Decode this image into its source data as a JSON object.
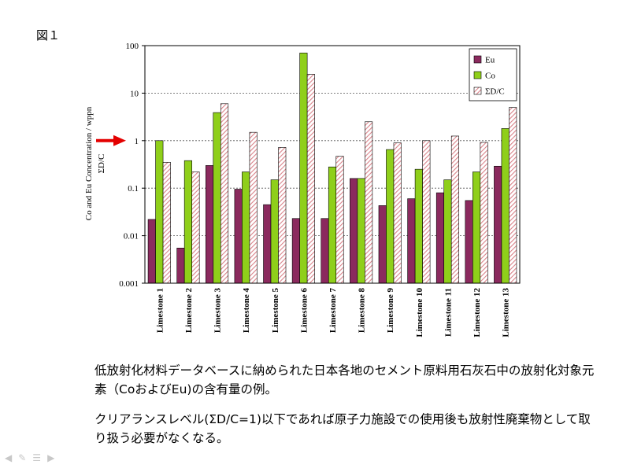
{
  "figure_label": "図１",
  "chart_data": {
    "type": "bar",
    "categories": [
      "Limestone 1",
      "Limestone 2",
      "Limestone 3",
      "Limestone 4",
      "Limestone 5",
      "Limestone 6",
      "Limestone 7",
      "Limestone 8",
      "Limestone 9",
      "Limestone 10",
      "Limestone 11",
      "Limestone 12",
      "Limestone 13"
    ],
    "series": [
      {
        "name": "Eu",
        "color": "#8b2a5e",
        "pattern": "solid",
        "values": [
          0.022,
          0.0055,
          0.3,
          0.095,
          0.045,
          0.023,
          0.023,
          0.16,
          0.043,
          0.06,
          0.08,
          0.055,
          0.29
        ]
      },
      {
        "name": "Co",
        "color": "#8fcf1a",
        "pattern": "solid",
        "values": [
          1.0,
          0.38,
          3.9,
          0.22,
          0.15,
          70,
          0.28,
          0.16,
          0.65,
          0.25,
          0.15,
          0.22,
          1.8
        ]
      },
      {
        "name": "ΣD/C",
        "color": "#d9838a",
        "pattern": "hatched",
        "values": [
          0.35,
          0.22,
          6.0,
          1.5,
          0.72,
          25,
          0.47,
          2.5,
          0.9,
          1.0,
          1.25,
          0.92,
          5.0
        ]
      }
    ],
    "ylabel_line1": "Co and Eu Concentration / wppn",
    "ylabel_line2": "ΣD/C",
    "yscale": "log",
    "ylim": [
      0.001,
      100
    ],
    "yticks": [
      "0.001",
      "0.01",
      "0.1",
      "1",
      "10",
      "100"
    ],
    "grid": "dotted horizontal at decades",
    "legend_position": "top-right",
    "marker_arrow": {
      "color": "#e30000",
      "points_to": 1
    }
  },
  "caption": {
    "paragraph1": "低放射化材料データベースに納められた日本各地のセメント原料用石灰石中の放射化対象元素（CoおよびEu)の含有量の例。",
    "paragraph2": "クリアランスレベル(ΣD/C=1)以下であれば原子力施設での使用後も放射性廃棄物として取り扱う必要がなくなる。"
  },
  "nav_icons": [
    "arrow-left-icon",
    "pen-icon",
    "menu-icon",
    "arrow-right-icon"
  ]
}
